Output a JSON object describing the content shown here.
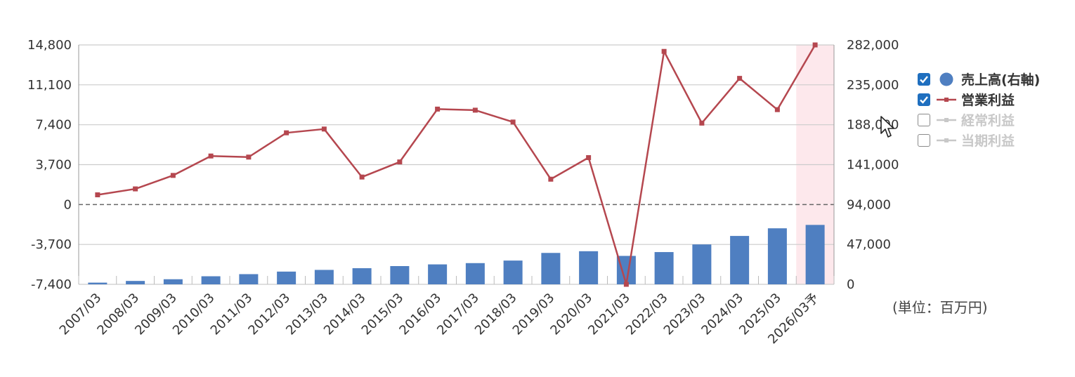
{
  "chart_data": {
    "type": "bar+line",
    "categories": [
      "2007/03",
      "2008/03",
      "2009/03",
      "2010/03",
      "2011/03",
      "2012/03",
      "2013/03",
      "2014/03",
      "2015/03",
      "2016/03",
      "2017/03",
      "2018/03",
      "2019/03",
      "2020/03",
      "2021/03",
      "2022/03",
      "2023/03",
      "2024/03",
      "2025/03",
      "2026/03予"
    ],
    "series": [
      {
        "name": "売上高(右軸)",
        "kind": "bar",
        "axis": "right",
        "values": [
          2000,
          4000,
          6000,
          9500,
          12000,
          15000,
          17000,
          19000,
          21500,
          23500,
          25000,
          28000,
          37000,
          39000,
          33500,
          38000,
          47000,
          57000,
          66000,
          70000
        ]
      },
      {
        "name": "営業利益",
        "kind": "line",
        "axis": "left",
        "values": [
          900,
          1450,
          2700,
          4500,
          4400,
          6650,
          7000,
          2550,
          3950,
          8850,
          8750,
          7650,
          2350,
          4350,
          -7400,
          14200,
          7550,
          11700,
          8800,
          14800
        ]
      }
    ],
    "yLeft": {
      "min": -7400,
      "max": 14800,
      "ticks": [
        "14,800",
        "11,100",
        "7,400",
        "3,700",
        "0",
        "-3,700",
        "-7,400"
      ]
    },
    "yRight": {
      "min": 0,
      "max": 282000,
      "ticks": [
        "282,000",
        "235,000",
        "188,000",
        "141,000",
        "94,000",
        "47,000",
        "0"
      ]
    },
    "highlight_category": "2026/03予",
    "colors": {
      "bar": "#4f7fc1",
      "line": "#b5474f",
      "grid": "#cccccc",
      "axis": "#999999",
      "highlight": "#fde8ec"
    }
  },
  "legend": {
    "items": [
      {
        "label": "売上高(右軸)",
        "checked": true,
        "symbol": "circle",
        "color": "#4f7fc1"
      },
      {
        "label": "営業利益",
        "checked": true,
        "symbol": "line-marker",
        "color": "#b5474f"
      },
      {
        "label": "経常利益",
        "checked": false,
        "symbol": "line-marker",
        "color": "#c8c8c8"
      },
      {
        "label": "当期利益",
        "checked": false,
        "symbol": "line-marker",
        "color": "#c8c8c8"
      }
    ]
  },
  "unit_label": "(単位：百万円)",
  "cursor": {
    "icon": "mouse-pointer-icon"
  }
}
